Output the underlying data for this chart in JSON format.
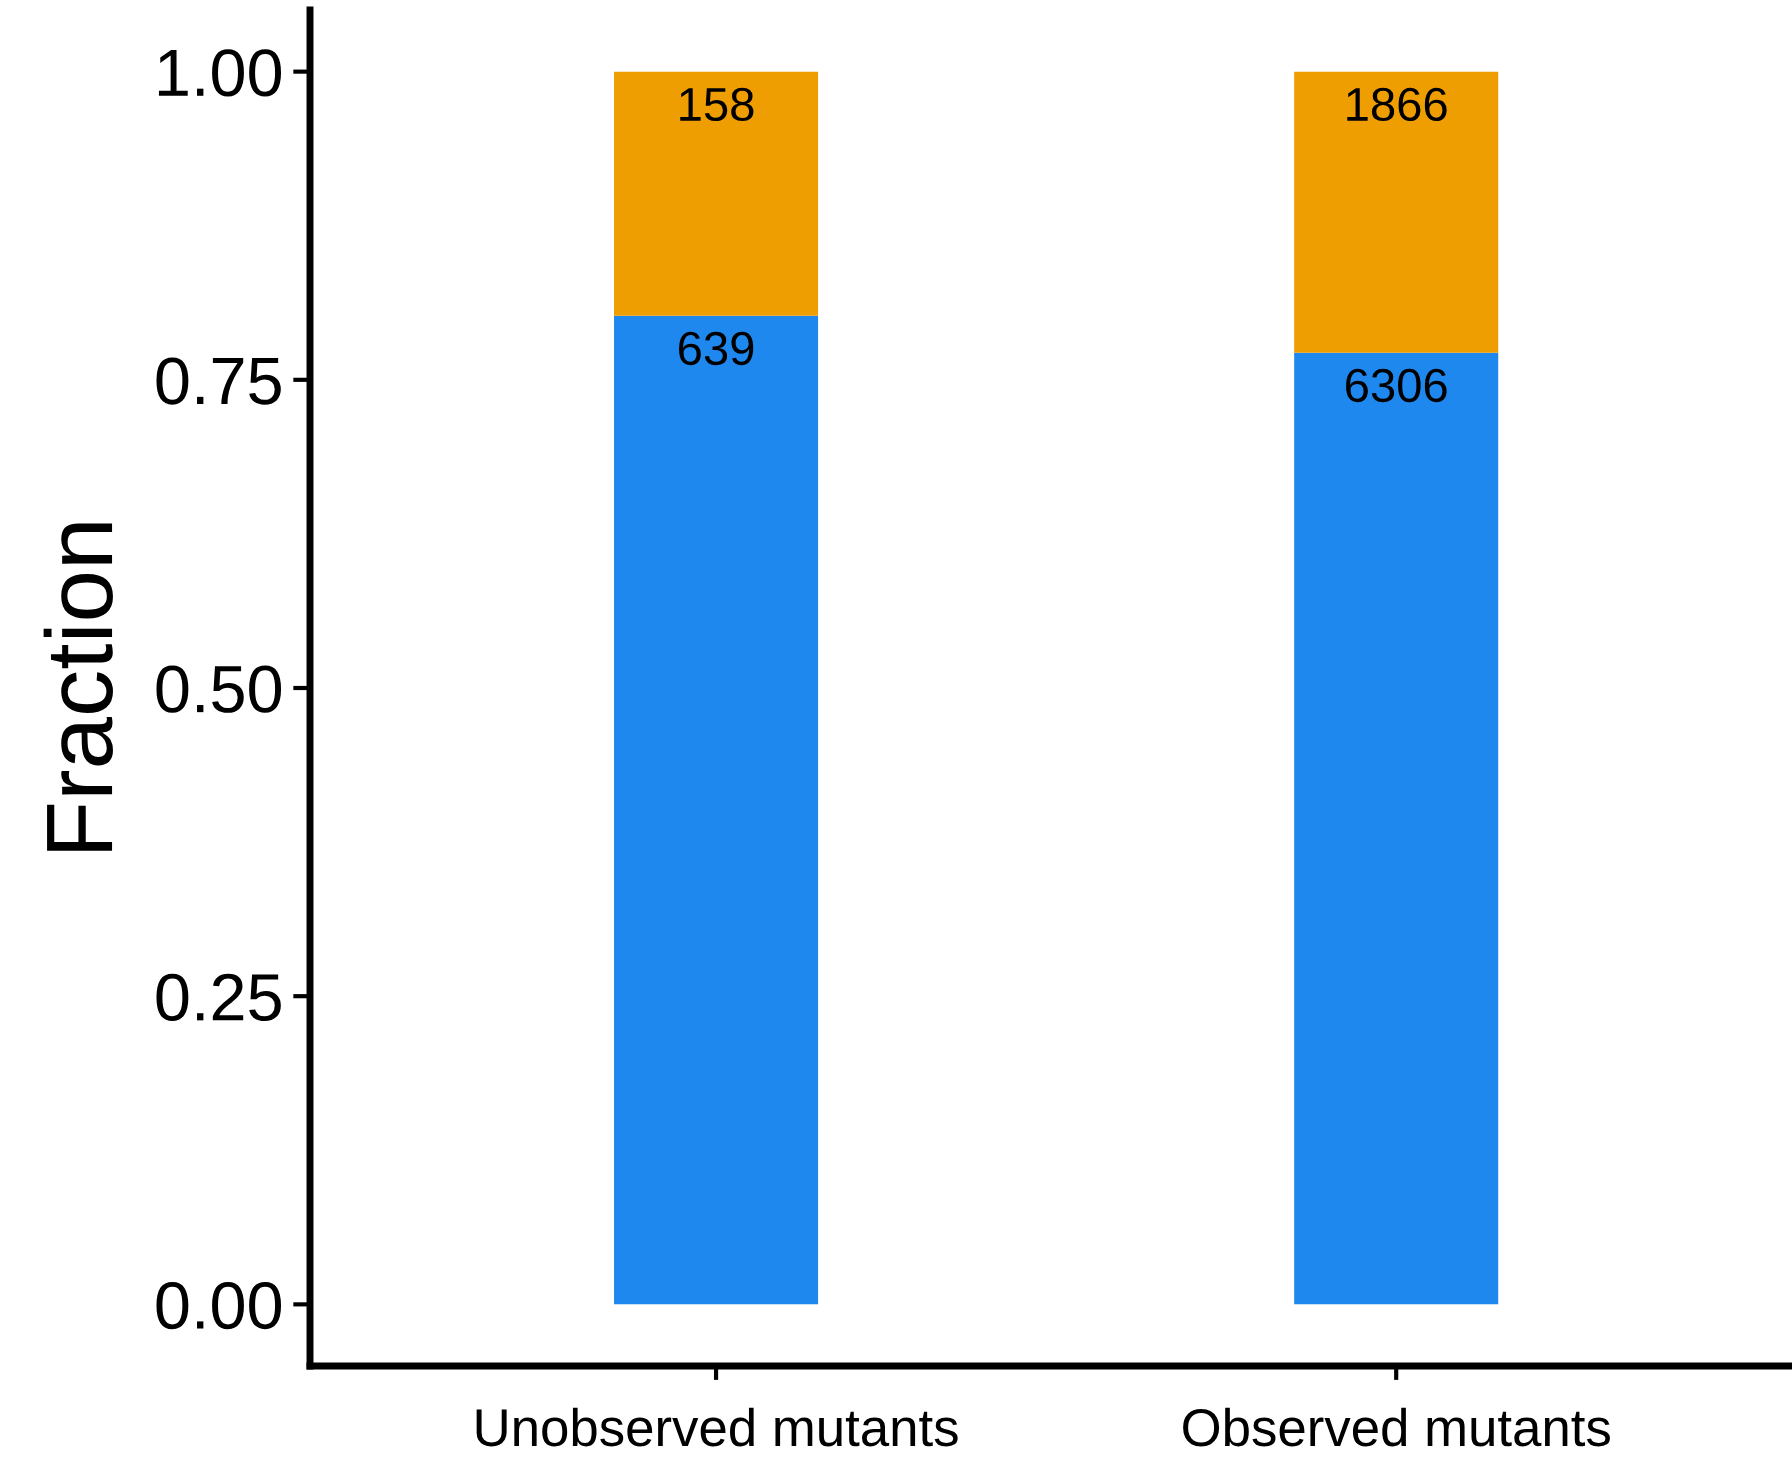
{
  "chart_data": {
    "type": "bar",
    "stacked": true,
    "ylabel": "Fraction",
    "categories": [
      "Unobserved mutants",
      "Observed mutants"
    ],
    "series": [
      {
        "color": "#1e88ee",
        "values": [
          0.802,
          0.772
        ]
      },
      {
        "color": "#ee9e00",
        "values": [
          0.198,
          0.228
        ]
      }
    ],
    "annotations": [
      {
        "text": "639",
        "x": "Unobserved mutants",
        "y": 0.802
      },
      {
        "text": "6306",
        "x": "Observed mutants",
        "y": 0.772
      },
      {
        "text": "158",
        "x": "Unobserved mutants",
        "y": 1.0
      },
      {
        "text": "1866",
        "x": "Observed mutants",
        "y": 1.0
      }
    ],
    "ylim": [
      -0.05,
      1.05
    ],
    "yticks": [
      {
        "value": 0,
        "label": "0.00"
      },
      {
        "value": 0.25,
        "label": "0.25"
      },
      {
        "value": 0.5,
        "label": "0.50"
      },
      {
        "value": 0.75,
        "label": "0.75"
      },
      {
        "value": 1,
        "label": "1.00"
      }
    ],
    "grid": false,
    "legend": false
  }
}
